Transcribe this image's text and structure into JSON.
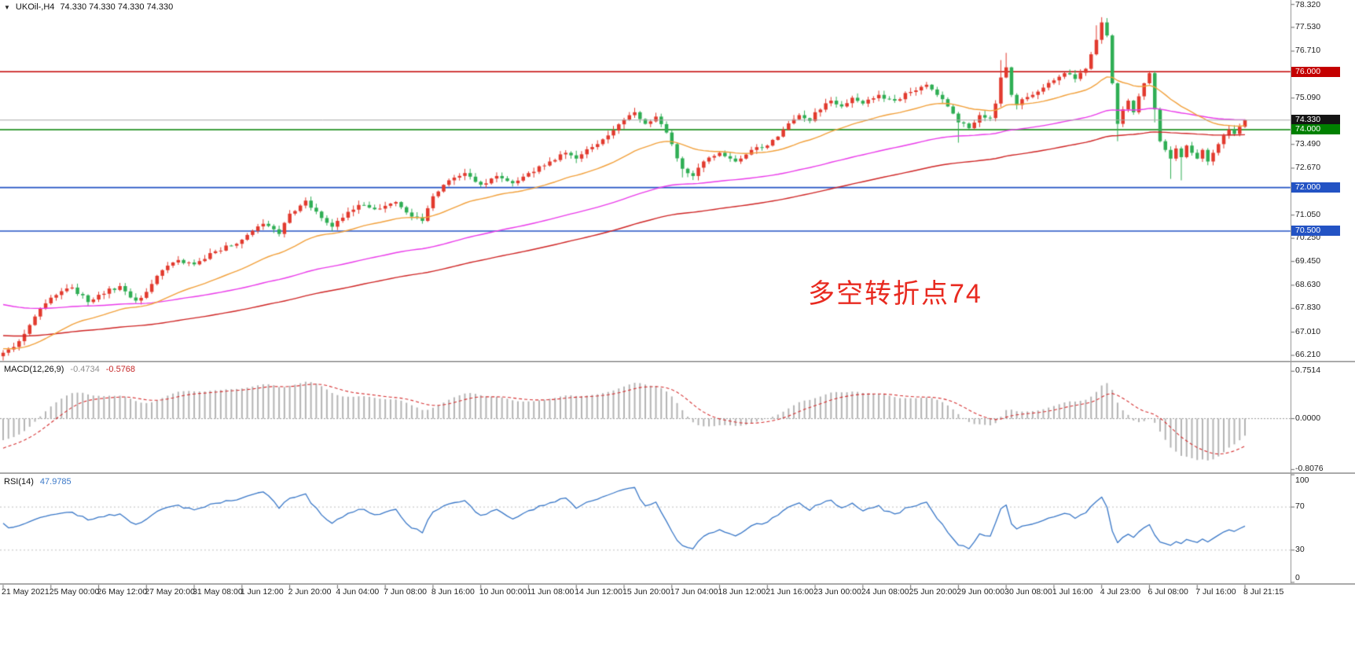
{
  "window_title": {
    "dropdown_icon": "▼",
    "symbol": "UKOil-,H4",
    "ohlc": "74.330 74.330 74.330 74.330"
  },
  "annotation": {
    "text": "多空转折点74",
    "color": "#e8291f"
  },
  "price_axis": {
    "ticks": [
      "78.320",
      "77.530",
      "76.710",
      "75.090",
      "73.490",
      "72.670",
      "71.050",
      "70.250",
      "69.450",
      "68.630",
      "67.830",
      "67.010",
      "66.210"
    ],
    "boxes": [
      {
        "text": "76.000",
        "bg": "#c40000",
        "name": "level-box-76000"
      },
      {
        "text": "74.330",
        "bg": "#141414",
        "name": "current-price-box"
      },
      {
        "text": "74.000",
        "bg": "#008000",
        "name": "level-box-74000"
      },
      {
        "text": "72.000",
        "bg": "#2353c4",
        "name": "level-box-72000"
      },
      {
        "text": "70.500",
        "bg": "#2353c4",
        "name": "level-box-70500"
      }
    ]
  },
  "macd_panel": {
    "name": "MACD(12,26,9)",
    "value_main": "-0.4734",
    "value_signal": "-0.5768",
    "ticks": [
      "0.7514",
      "0.0000",
      "-0.8076"
    ]
  },
  "rsi_panel": {
    "name": "RSI(14)",
    "value": "47.9785",
    "ticks": [
      "100",
      "70",
      "30",
      "0"
    ]
  },
  "time_axis": {
    "labels": [
      "21 May 2021",
      "25 May 00:00",
      "26 May 12:00",
      "27 May 20:00",
      "31 May 08:00",
      "1 Jun 12:00",
      "2 Jun 20:00",
      "4 Jun 04:00",
      "7 Jun 08:00",
      "8 Jun 16:00",
      "10 Jun 00:00",
      "11 Jun 08:00",
      "14 Jun 12:00",
      "15 Jun 20:00",
      "17 Jun 04:00",
      "18 Jun 12:00",
      "21 Jun 16:00",
      "23 Jun 00:00",
      "24 Jun 08:00",
      "25 Jun 20:00",
      "29 Jun 00:00",
      "30 Jun 08:00",
      "1 Jul 16:00",
      "4 Jul 23:00",
      "6 Jul 08:00",
      "7 Jul 16:00",
      "8 Jul 21:15"
    ]
  },
  "chart_data": {
    "type": "candlestick",
    "symbol": "UKOil",
    "timeframe": "H4",
    "current_price": 74.33,
    "price_range": [
      66.05,
      78.42
    ],
    "num_candles": 235,
    "close_keyframes": [
      [
        0,
        66.3
      ],
      [
        2,
        66.5
      ],
      [
        4,
        66.95
      ],
      [
        6,
        67.55
      ],
      [
        9,
        68.2
      ],
      [
        13,
        68.55
      ],
      [
        16,
        68.05
      ],
      [
        18,
        68.3
      ],
      [
        22,
        68.6
      ],
      [
        25,
        68.1
      ],
      [
        27,
        68.4
      ],
      [
        30,
        69.15
      ],
      [
        33,
        69.5
      ],
      [
        36,
        69.35
      ],
      [
        40,
        69.8
      ],
      [
        45,
        70.2
      ],
      [
        49,
        70.75
      ],
      [
        52,
        70.4
      ],
      [
        54,
        71.1
      ],
      [
        57,
        71.55
      ],
      [
        60,
        70.95
      ],
      [
        62,
        70.65
      ],
      [
        63,
        70.85
      ],
      [
        67,
        71.4
      ],
      [
        70,
        71.25
      ],
      [
        74,
        71.5
      ],
      [
        77,
        71.0
      ],
      [
        79,
        70.85
      ],
      [
        81,
        71.7
      ],
      [
        84,
        72.25
      ],
      [
        87,
        72.5
      ],
      [
        90,
        72.1
      ],
      [
        93,
        72.4
      ],
      [
        96,
        72.15
      ],
      [
        99,
        72.5
      ],
      [
        103,
        72.9
      ],
      [
        106,
        73.2
      ],
      [
        108,
        73.0
      ],
      [
        111,
        73.4
      ],
      [
        114,
        73.8
      ],
      [
        117,
        74.35
      ],
      [
        119,
        74.6
      ],
      [
        121,
        74.2
      ],
      [
        123,
        74.45
      ],
      [
        125,
        73.9
      ],
      [
        126,
        73.5
      ],
      [
        128,
        72.65
      ],
      [
        130,
        72.4
      ],
      [
        132,
        72.9
      ],
      [
        135,
        73.2
      ],
      [
        138,
        72.9
      ],
      [
        141,
        73.3
      ],
      [
        144,
        73.45
      ],
      [
        147,
        74.0
      ],
      [
        150,
        74.5
      ],
      [
        152,
        74.3
      ],
      [
        153,
        74.6
      ],
      [
        156,
        75.0
      ],
      [
        158,
        74.8
      ],
      [
        160,
        75.1
      ],
      [
        162,
        74.9
      ],
      [
        165,
        75.2
      ],
      [
        168,
        75.0
      ],
      [
        171,
        75.3
      ],
      [
        174,
        75.55
      ],
      [
        176,
        75.2
      ],
      [
        178,
        74.8
      ],
      [
        180,
        74.25
      ],
      [
        182,
        74.05
      ],
      [
        184,
        74.5
      ],
      [
        186,
        74.4
      ],
      [
        187,
        74.9
      ],
      [
        188,
        75.8
      ],
      [
        189,
        76.15
      ],
      [
        190,
        75.2
      ],
      [
        191,
        74.85
      ],
      [
        192,
        75.05
      ],
      [
        194,
        75.2
      ],
      [
        196,
        75.45
      ],
      [
        198,
        75.7
      ],
      [
        200,
        75.95
      ],
      [
        202,
        75.75
      ],
      [
        204,
        76.1
      ],
      [
        205,
        76.6
      ],
      [
        206,
        77.1
      ],
      [
        207,
        77.7
      ],
      [
        208,
        77.25
      ],
      [
        209,
        75.6
      ],
      [
        210,
        74.2
      ],
      [
        211,
        74.7
      ],
      [
        212,
        75.0
      ],
      [
        213,
        74.6
      ],
      [
        214,
        75.15
      ],
      [
        215,
        75.6
      ],
      [
        216,
        75.95
      ],
      [
        217,
        74.7
      ],
      [
        218,
        73.6
      ],
      [
        219,
        73.3
      ],
      [
        220,
        73.0
      ],
      [
        221,
        73.35
      ],
      [
        222,
        73.05
      ],
      [
        223,
        73.45
      ],
      [
        224,
        73.2
      ],
      [
        225,
        73.0
      ],
      [
        226,
        73.3
      ],
      [
        227,
        72.9
      ],
      [
        228,
        73.2
      ],
      [
        229,
        73.5
      ],
      [
        230,
        73.8
      ],
      [
        231,
        74.0
      ],
      [
        232,
        73.85
      ],
      [
        233,
        74.1
      ],
      [
        234,
        74.33
      ]
    ],
    "wick_overrides": {
      "128": {
        "low": 72.35
      },
      "180": {
        "low": 73.55
      },
      "188": {
        "high": 76.4
      },
      "189": {
        "high": 76.65
      },
      "206": {
        "high": 77.6
      },
      "207": {
        "high": 77.88
      },
      "210": {
        "low": 73.6
      },
      "217": {
        "low": 74.25
      },
      "220": {
        "low": 72.3
      },
      "222": {
        "low": 72.25
      }
    },
    "levels": [
      {
        "price": 76.0,
        "color": "#c40000"
      },
      {
        "price": 74.0,
        "color": "#008000"
      },
      {
        "price": 72.0,
        "color": "#2353c4"
      },
      {
        "price": 70.5,
        "color": "#2353c4"
      }
    ],
    "bid_line": {
      "price": 74.33,
      "color": "#a8a8a8"
    },
    "candle_colors": {
      "bull": "#e23a2e",
      "bear": "#2fae54"
    },
    "moving_averages": [
      {
        "period": 28,
        "color": "#f2a13c",
        "seed": 66.45
      },
      {
        "period": 89,
        "color": "#ea3bea",
        "seed": 68.0
      },
      {
        "period": 140,
        "color": "#cf2525",
        "seed": 66.9
      }
    ],
    "macd": {
      "fast": 12,
      "slow": 26,
      "signal": 9,
      "range": [
        -0.84,
        0.88
      ],
      "seed_fast": 66.5,
      "seed_slow": 66.85,
      "seed_signal": -0.5,
      "hist_color": "#b4b4b4",
      "signal_color": "#d63031"
    },
    "rsi": {
      "period": 14,
      "levels": [
        70,
        30
      ],
      "color": "#3a78c8"
    }
  }
}
